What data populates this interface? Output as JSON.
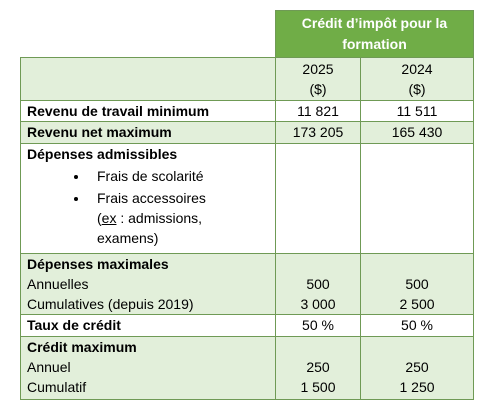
{
  "table": {
    "title": "Crédit d’impôt pour la formation",
    "columns": [
      {
        "year": "2025",
        "unit": "($)"
      },
      {
        "year": "2024",
        "unit": "($)"
      }
    ],
    "rows": [
      {
        "label": "Revenu de travail minimum",
        "values": [
          "11 821",
          "11 511"
        ]
      },
      {
        "label": "Revenu net maximum",
        "values": [
          "173 205",
          "165 430"
        ]
      },
      {
        "label": "Dépenses admissibles",
        "bullets": [
          {
            "text": "Frais de scolarité"
          },
          {
            "text": "Frais accessoires",
            "open": "(",
            "abbr": "ex",
            "rest": " : admissions, examens)"
          }
        ]
      },
      {
        "label": "Dépenses maximales",
        "items": [
          {
            "label": "Annuelles",
            "values": [
              "500",
              "500"
            ]
          },
          {
            "label": "Cumulatives (depuis 2019)",
            "values": [
              "3 000",
              "2 500"
            ]
          }
        ]
      },
      {
        "label": "Taux de crédit",
        "values": [
          "50 %",
          "50 %"
        ]
      },
      {
        "label": "Crédit maximum",
        "items": [
          {
            "label": "Annuel",
            "values": [
              "250",
              "250"
            ]
          },
          {
            "label": "Cumulatif",
            "values": [
              "1 500",
              "1 250"
            ]
          }
        ]
      }
    ]
  }
}
